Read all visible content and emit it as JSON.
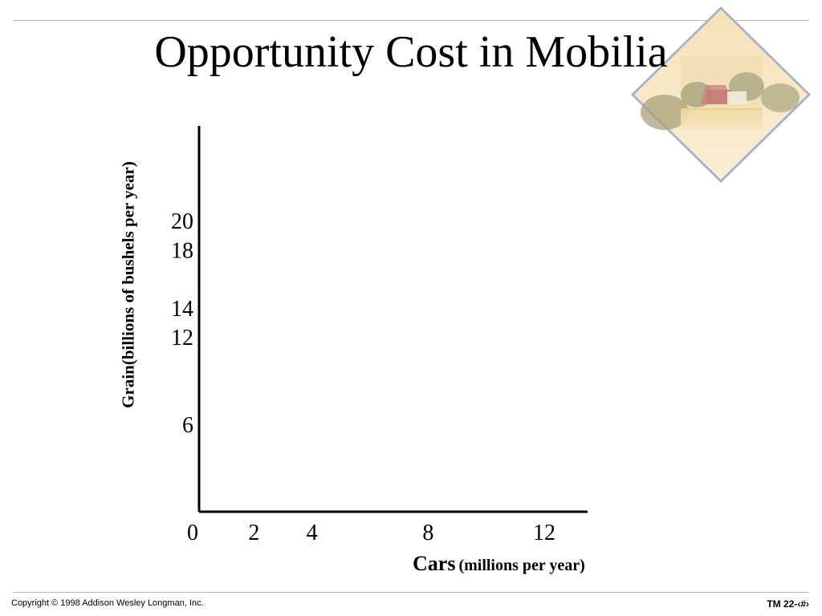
{
  "slide": {
    "title": "Opportunity Cost in Mobilia",
    "copyright": "Copyright © 1998 Addison Wesley Longman, Inc.",
    "slide_number": "TM 22-‹#›"
  },
  "logo": {
    "icon": "farm-landscape-icon"
  },
  "colors": {
    "axis": "#000000",
    "rule": "#b4b4b4"
  },
  "chart_data": {
    "type": "line",
    "title": "",
    "xlabel": "Cars",
    "xlabel_unit": "(millions per year)",
    "ylabel": "Grain(billions of bushels per year)",
    "x_ticks": [
      "0",
      "2",
      "4",
      "8",
      "12"
    ],
    "y_ticks": [
      "20",
      "18",
      "14",
      "12",
      "6"
    ],
    "series": [],
    "grid": false
  }
}
